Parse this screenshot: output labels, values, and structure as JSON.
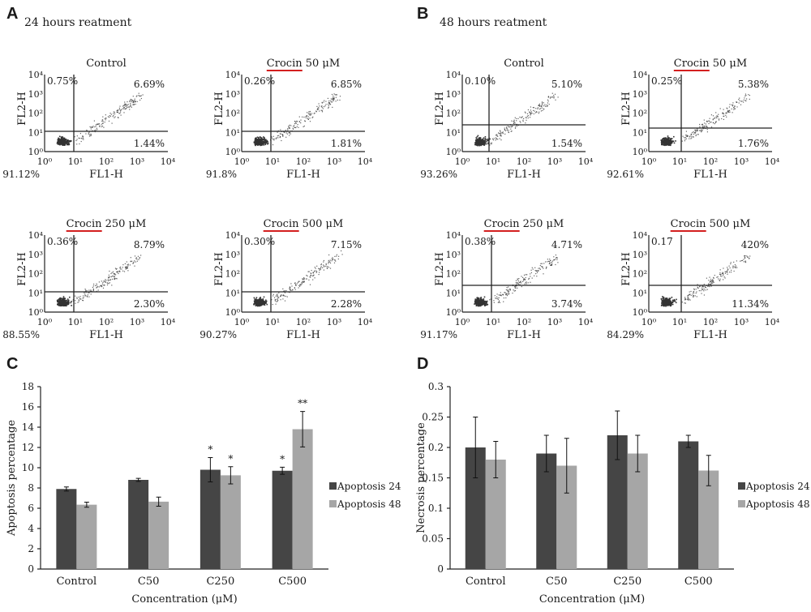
{
  "panel_letters": [
    "A",
    "B",
    "C",
    "D"
  ],
  "sections": {
    "A": {
      "title": "24 hours reatment"
    },
    "B": {
      "title": "48 hours reatment"
    }
  },
  "flow_axis": {
    "xlabel": "FL1-H",
    "ylabel": "FL2-H",
    "x_ticks": [
      "10⁰",
      "10¹",
      "10²",
      "10³",
      "10⁴"
    ],
    "y_ticks": [
      "10⁰",
      "10¹",
      "10²",
      "10³",
      "10⁴"
    ]
  },
  "flow_plots": [
    {
      "section": "A",
      "title_plain": "Control",
      "title_underlined": "",
      "title_rest": "",
      "early_left": "0.75%",
      "upper_right": "6.69%",
      "lower_right": "1.44%",
      "live": "91.12%"
    },
    {
      "section": "A",
      "title_plain": "",
      "title_underlined": "Crocin",
      "title_rest": " 50 μM",
      "early_left": "0.26%",
      "upper_right": "6.85%",
      "lower_right": "1.81%",
      "live": "91.8%"
    },
    {
      "section": "A",
      "title_plain": "",
      "title_underlined": "Crocin",
      "title_rest": " 250 μM",
      "early_left": "0.36%",
      "upper_right": "8.79%",
      "lower_right": "2.30%",
      "live": "88.55%"
    },
    {
      "section": "A",
      "title_plain": "",
      "title_underlined": "Crocin",
      "title_rest": " 500 μM",
      "early_left": "0.30%",
      "upper_right": "7.15%",
      "lower_right": "2.28%",
      "live": "90.27%"
    },
    {
      "section": "B",
      "title_plain": "Control",
      "title_underlined": "",
      "title_rest": "",
      "early_left": "0.10%",
      "upper_right": "5.10%",
      "lower_right": "1.54%",
      "live": "93.26%"
    },
    {
      "section": "B",
      "title_plain": "",
      "title_underlined": "Crocin",
      "title_rest": " 50 μM",
      "early_left": "0.25%",
      "upper_right": "5.38%",
      "lower_right": "1.76%",
      "live": "92.61%"
    },
    {
      "section": "B",
      "title_plain": "",
      "title_underlined": "Crocin",
      "title_rest": " 250 μM",
      "early_left": "0.38%",
      "upper_right": "4.71%",
      "lower_right": "3.74%",
      "live": "91.17%"
    },
    {
      "section": "B",
      "title_plain": "",
      "title_underlined": "Crocin",
      "title_rest": " 500 μM",
      "early_left": "0.17",
      "upper_right": "420%",
      "lower_right": "11.34%",
      "live": "84.29%"
    }
  ],
  "colors": {
    "dark_bar": "#454545",
    "light_bar": "#a6a6a6",
    "underline": "#d41f1f",
    "dots": "#333333"
  },
  "chart_data": [
    {
      "panel": "C",
      "type": "bar",
      "categories": [
        "Control",
        "C50",
        "C250",
        "C500"
      ],
      "series": [
        {
          "name": "Apoptosis 24",
          "values": [
            7.9,
            8.8,
            9.8,
            9.7
          ],
          "errors": [
            0.2,
            0.15,
            1.2,
            0.35
          ]
        },
        {
          "name": "Apoptosis 48",
          "values": [
            6.35,
            6.65,
            9.25,
            13.8
          ],
          "errors": [
            0.25,
            0.45,
            0.85,
            1.75
          ]
        }
      ],
      "significance": [
        [
          "",
          "",
          "*",
          "*"
        ],
        [
          "",
          "",
          "*",
          "**"
        ]
      ],
      "xlabel": "Concentration (μM)",
      "ylabel": "Apoptosis percentage",
      "ylim": [
        0,
        18
      ],
      "yticks": [
        "0",
        "2",
        "4",
        "6",
        "8",
        "10",
        "12",
        "14",
        "16",
        "18"
      ],
      "legend": "right",
      "grid": false
    },
    {
      "panel": "D",
      "type": "bar",
      "categories": [
        "Control",
        "C50",
        "C250",
        "C500"
      ],
      "series": [
        {
          "name": "Apoptosis 24",
          "values": [
            0.2,
            0.19,
            0.22,
            0.21
          ],
          "errors": [
            0.05,
            0.03,
            0.04,
            0.01
          ]
        },
        {
          "name": "Apoptosis 48",
          "values": [
            0.18,
            0.17,
            0.19,
            0.162
          ],
          "errors": [
            0.03,
            0.045,
            0.03,
            0.025
          ]
        }
      ],
      "significance": [
        [
          "",
          "",
          "",
          ""
        ],
        [
          "",
          "",
          "",
          ""
        ]
      ],
      "xlabel": "Concentration (μM)",
      "ylabel": "Necrosis percentage",
      "ylim": [
        0,
        0.3
      ],
      "yticks": [
        "0",
        "0.05",
        "0.1",
        "0.15",
        "0.2",
        "0.25",
        "0.3"
      ],
      "legend": "right",
      "grid": false
    }
  ]
}
